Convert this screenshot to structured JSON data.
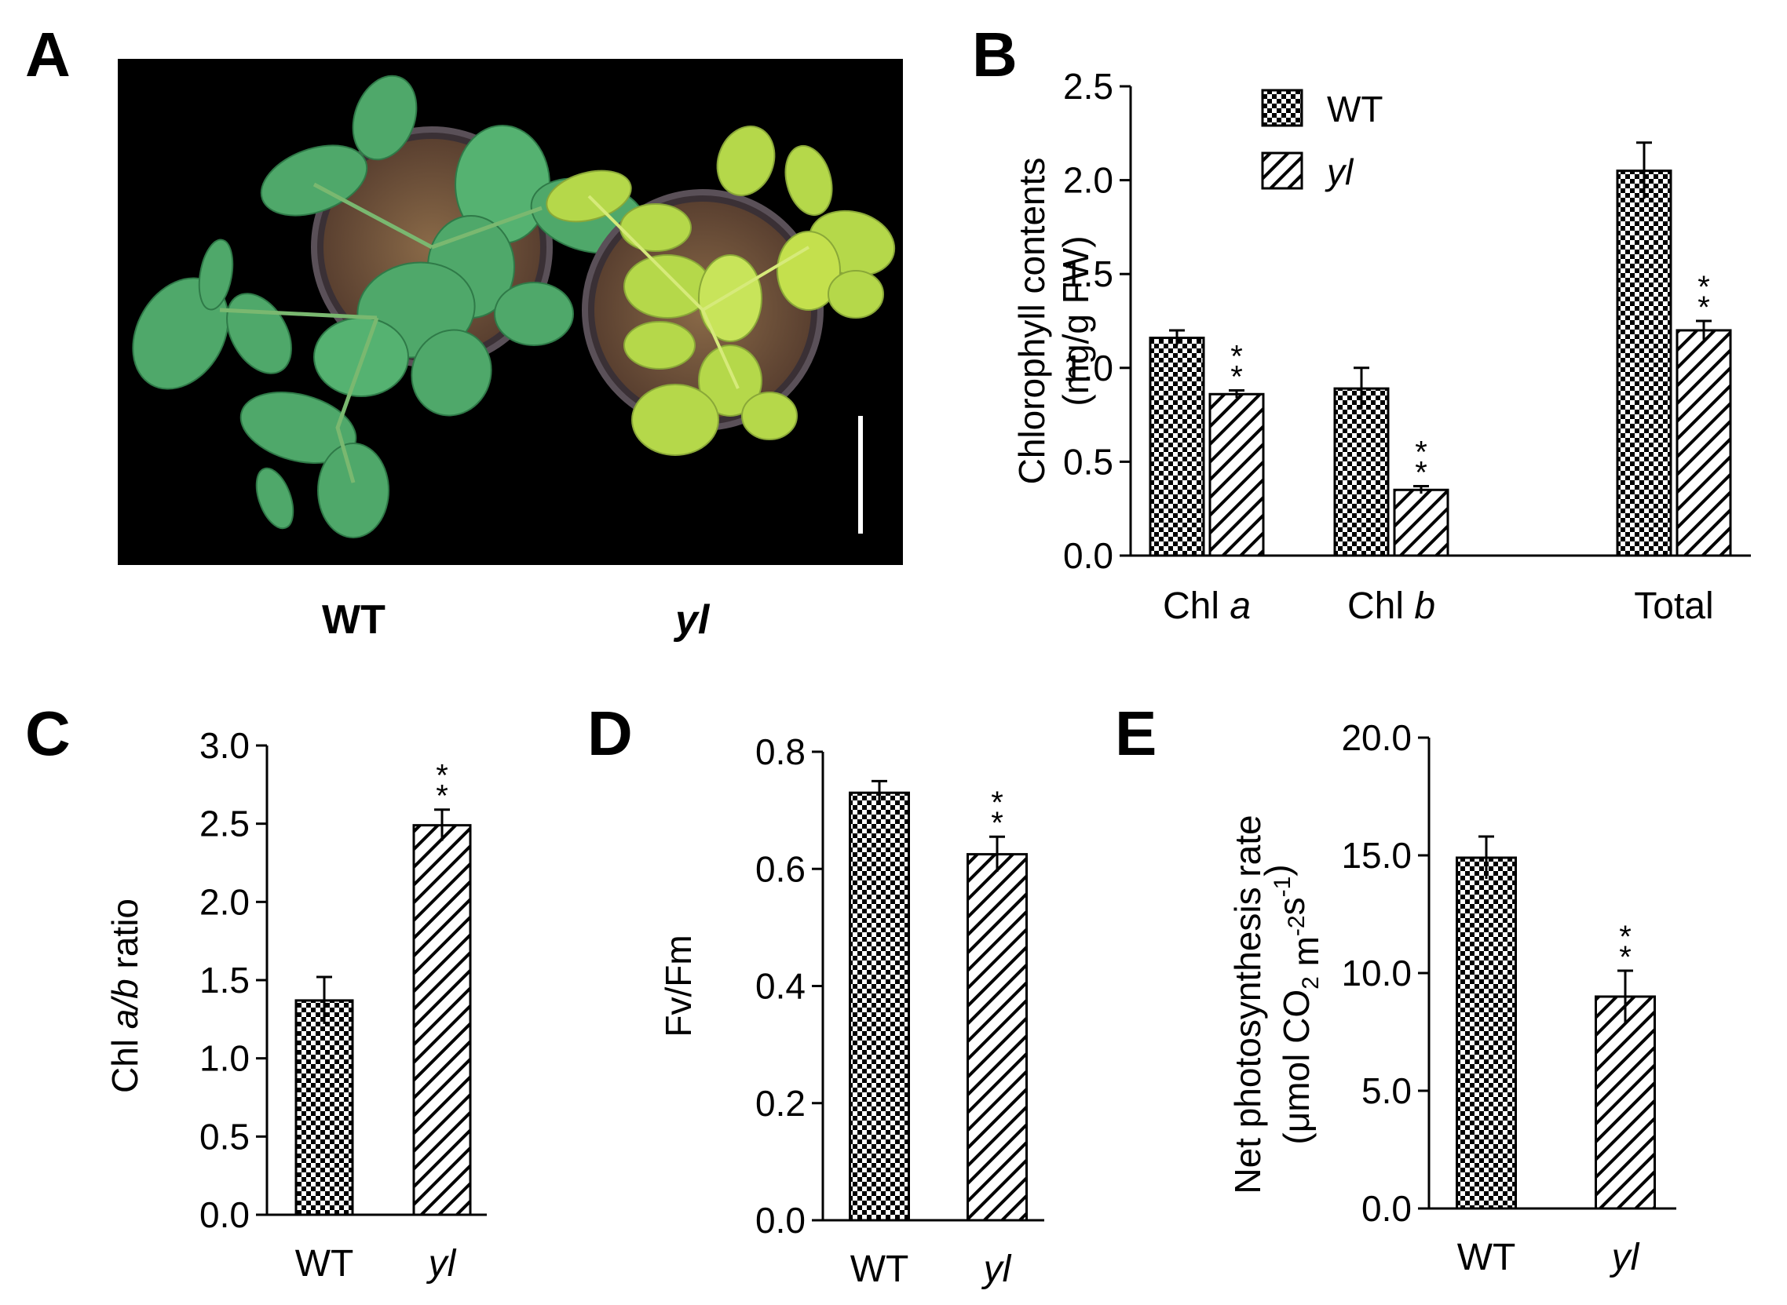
{
  "panels": {
    "a": "A",
    "b": "B",
    "c": "C",
    "d": "D",
    "e": "E"
  },
  "photo_labels": {
    "wt": "WT",
    "yl": "yl"
  },
  "colors": {
    "wt_pattern": "checkerboard black/white",
    "yl_pattern": "diagonal hatch",
    "photo_background": "#000000",
    "leaf_wt": "#4fa86a",
    "leaf_yl": "#b5d84a"
  },
  "chart_data": [
    {
      "panel": "B",
      "type": "bar",
      "categories": [
        "Chl a",
        "Chl b",
        "Total"
      ],
      "category_parts": [
        [
          "Chl ",
          "a"
        ],
        [
          "Chl ",
          "b"
        ],
        [
          "Total",
          ""
        ]
      ],
      "series": [
        {
          "name": "WT",
          "values": [
            1.16,
            0.89,
            2.05
          ],
          "errors": [
            0.04,
            0.11,
            0.15
          ]
        },
        {
          "name": "yl",
          "values": [
            0.86,
            0.35,
            1.2
          ],
          "errors": [
            0.02,
            0.02,
            0.05
          ],
          "significance": [
            "**",
            "**",
            "**"
          ]
        }
      ],
      "ylabel": [
        "Chlorophyll contents",
        "(mg/g FW)"
      ],
      "ylim": [
        0,
        2.5
      ],
      "yticks": [
        "0.0",
        "0.5",
        "1.0",
        "1.5",
        "2.0",
        "2.5"
      ],
      "legend_position": "top-left"
    },
    {
      "panel": "C",
      "type": "bar",
      "categories": [
        "WT",
        "yl"
      ],
      "values": [
        1.37,
        2.49
      ],
      "errors": [
        0.15,
        0.1
      ],
      "significance": [
        "",
        "**"
      ],
      "ylabel_parts": [
        "Chl ",
        "a/b",
        " ratio"
      ],
      "ylim": [
        0,
        3.0
      ],
      "yticks": [
        "0.0",
        "0.5",
        "1.0",
        "1.5",
        "2.0",
        "2.5",
        "3.0"
      ]
    },
    {
      "panel": "D",
      "type": "bar",
      "categories": [
        "WT",
        "yl"
      ],
      "values": [
        0.73,
        0.625
      ],
      "errors": [
        0.02,
        0.03
      ],
      "significance": [
        "",
        "**"
      ],
      "ylabel": "Fv/Fm",
      "ylim": [
        0,
        0.8
      ],
      "yticks": [
        "0.0",
        "0.2",
        "0.4",
        "0.6",
        "0.8"
      ]
    },
    {
      "panel": "E",
      "type": "bar",
      "categories": [
        "WT",
        "yl"
      ],
      "values": [
        14.9,
        9.0
      ],
      "errors": [
        0.9,
        1.1
      ],
      "significance": [
        "",
        "**"
      ],
      "ylabel": [
        "Net photosynthesis rate",
        "(μmol CO2 m-2s-1)"
      ],
      "ylim": [
        0,
        20.0
      ],
      "yticks": [
        "0.0",
        "5.0",
        "10.0",
        "15.0",
        "20.0"
      ]
    }
  ]
}
